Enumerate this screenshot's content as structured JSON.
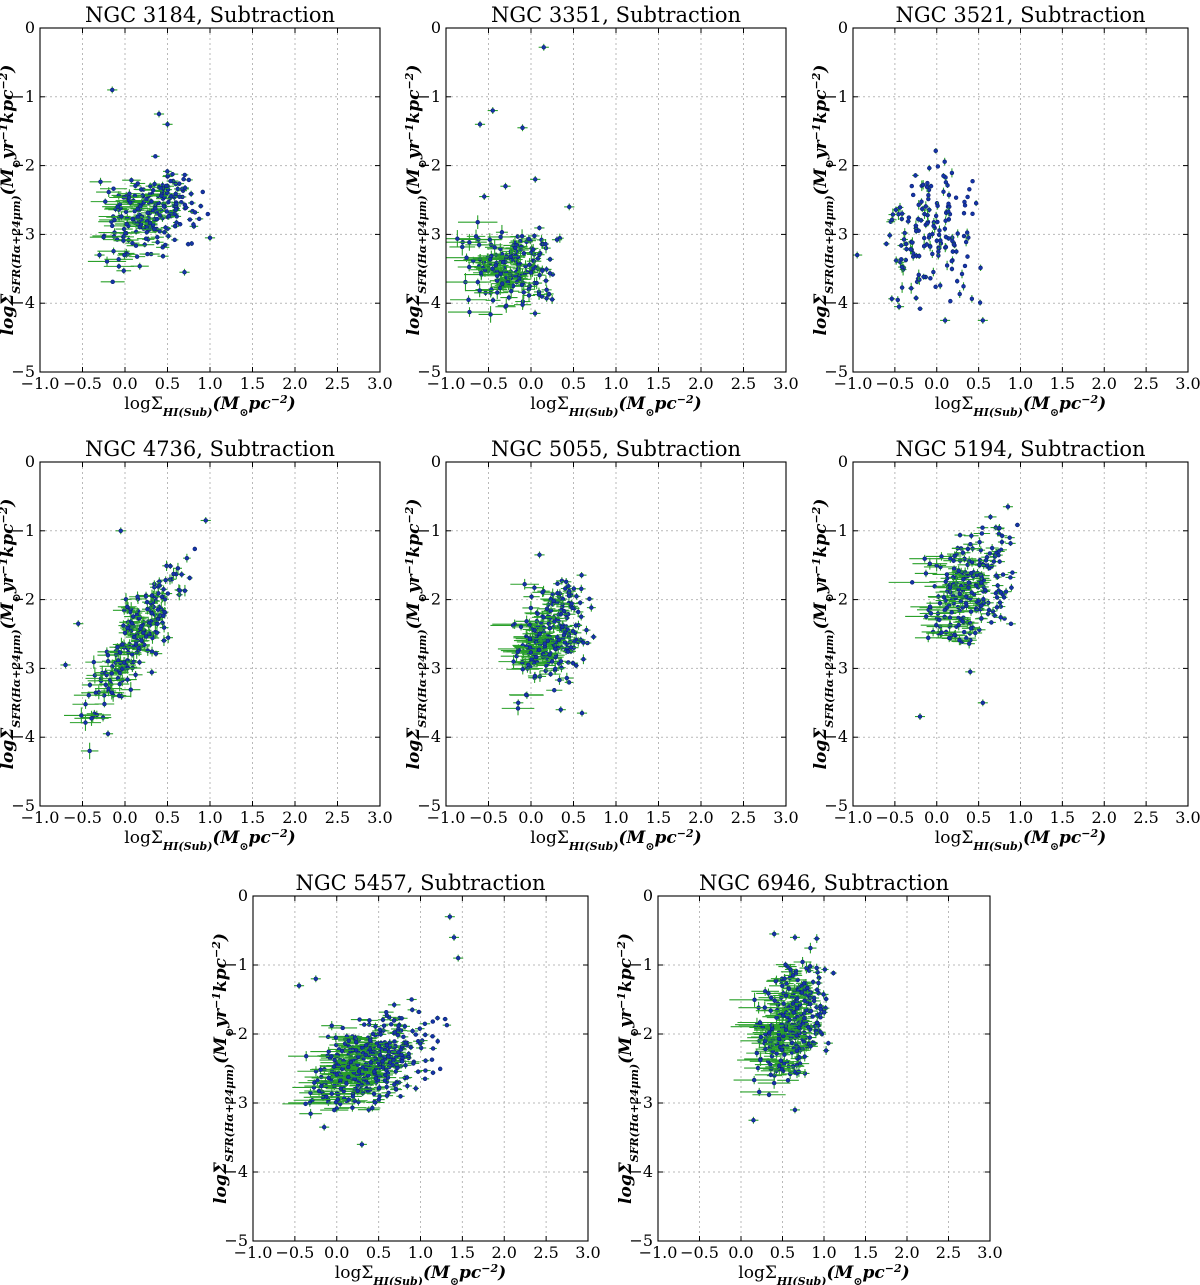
{
  "figure": {
    "xlabel": "logΣ_HI(Sub)(M⊙pc^-2)",
    "ylabel": "logΣ_SFR(Hα+24μm)(M⊙yr^-1kpc^-2)",
    "colors": {
      "points": "#1535a8",
      "errorbars": "#2aa02a",
      "grid": "#b9b9b9"
    }
  },
  "chart_data": [
    {
      "type": "scatter",
      "title": "NGC 3184, Subtraction",
      "xlabel": "logΣHI(Sub)(M⊙pc−2)",
      "ylabel": "logΣSFR(Hα+24μm)(M⊙yr−1kpc−2)",
      "xlim": [
        -1.0,
        3.0
      ],
      "ylim": [
        -5,
        0
      ],
      "xticks": [
        "−1.0",
        "−0.5",
        "0.0",
        "0.5",
        "1.0",
        "1.5",
        "2.0",
        "2.5",
        "3.0"
      ],
      "yticks": [
        "−5",
        "−4",
        "−3",
        "−2",
        "−1",
        "0"
      ],
      "grid": true,
      "cloud": {
        "n": 230,
        "x_range": [
          -0.45,
          1.05
        ],
        "y_range": [
          -3.7,
          -1.7
        ],
        "corr": 0.35,
        "xerr_max": 0.3,
        "yerr_max": 0.08
      },
      "highlights": [
        {
          "x": -0.15,
          "y": -0.9
        },
        {
          "x": 0.4,
          "y": -1.25
        },
        {
          "x": 0.5,
          "y": -1.4
        },
        {
          "x": 0.7,
          "y": -3.55
        },
        {
          "x": 1.0,
          "y": -3.05
        },
        {
          "x": -0.3,
          "y": -3.3
        }
      ]
    },
    {
      "type": "scatter",
      "title": "NGC 3351, Subtraction",
      "xlabel": "logΣHI(Sub)(M⊙pc−2)",
      "ylabel": "logΣSFR(Hα+24μm)(M⊙yr−1kpc−2)",
      "xlim": [
        -1.0,
        3.0
      ],
      "ylim": [
        -5,
        0
      ],
      "xticks": [
        "−1.0",
        "−0.5",
        "0.0",
        "0.5",
        "1.0",
        "1.5",
        "2.0",
        "2.5",
        "3.0"
      ],
      "yticks": [
        "−5",
        "−4",
        "−3",
        "−2",
        "−1",
        "0"
      ],
      "grid": true,
      "cloud": {
        "n": 190,
        "x_range": [
          -1.0,
          0.45
        ],
        "y_range": [
          -4.3,
          -2.7
        ],
        "corr": 0.0,
        "xerr_max": 0.4,
        "yerr_max": 0.15
      },
      "highlights": [
        {
          "x": 0.15,
          "y": -0.28
        },
        {
          "x": -0.45,
          "y": -1.2
        },
        {
          "x": -0.6,
          "y": -1.4
        },
        {
          "x": -0.1,
          "y": -1.45
        },
        {
          "x": -0.55,
          "y": -2.45
        },
        {
          "x": -0.3,
          "y": -2.3
        },
        {
          "x": 0.05,
          "y": -2.2
        },
        {
          "x": 0.45,
          "y": -2.6
        }
      ]
    },
    {
      "type": "scatter",
      "title": "NGC 3521, Subtraction",
      "xlabel": "logΣHI(Sub)(M⊙pc−2)",
      "ylabel": "logΣSFR(Hα+24μm)(M⊙yr−1kpc−2)",
      "xlim": [
        -1.0,
        3.0
      ],
      "ylim": [
        -5,
        0
      ],
      "xticks": [
        "−1.0",
        "−0.5",
        "0.0",
        "0.5",
        "1.0",
        "1.5",
        "2.0",
        "2.5",
        "3.0"
      ],
      "yticks": [
        "−5",
        "−4",
        "−3",
        "−2",
        "−1",
        "0"
      ],
      "grid": true,
      "cloud": {
        "n": 160,
        "x_range": [
          -0.85,
          0.8
        ],
        "y_range": [
          -4.3,
          -1.6
        ],
        "corr": 0.0,
        "xerr_max": 0.08,
        "yerr_max": 0.1
      },
      "highlights": [
        {
          "x": -0.95,
          "y": -3.3
        },
        {
          "x": -0.45,
          "y": -4.05
        },
        {
          "x": 0.1,
          "y": -4.25
        },
        {
          "x": 0.55,
          "y": -4.25
        }
      ]
    },
    {
      "type": "scatter",
      "title": "NGC 4736, Subtraction",
      "xlabel": "logΣHI(Sub)(M⊙pc−2)",
      "ylabel": "logΣSFR(Hα+24μm)(M⊙yr−1kpc−2)",
      "xlim": [
        -1.0,
        3.0
      ],
      "ylim": [
        -5,
        0
      ],
      "xticks": [
        "−1.0",
        "−0.5",
        "0.0",
        "0.5",
        "1.0",
        "1.5",
        "2.0",
        "2.5",
        "3.0"
      ],
      "yticks": [
        "−5",
        "−4",
        "−3",
        "−2",
        "−1",
        "0"
      ],
      "grid": true,
      "cloud": {
        "n": 210,
        "x_range": [
          -0.65,
          0.95
        ],
        "y_range": [
          -4.2,
          -0.85
        ],
        "corr": 0.85,
        "xerr_max": 0.3,
        "yerr_max": 0.15
      },
      "highlights": [
        {
          "x": -0.05,
          "y": -1.0
        },
        {
          "x": 0.95,
          "y": -0.85
        },
        {
          "x": -0.55,
          "y": -2.35
        },
        {
          "x": -0.7,
          "y": -2.95
        },
        {
          "x": -0.2,
          "y": -3.95
        }
      ]
    },
    {
      "type": "scatter",
      "title": "NGC 5055, Subtraction",
      "xlabel": "logΣHI(Sub)(M⊙pc−2)",
      "ylabel": "logΣSFR(Hα+24μm)(M⊙yr−1kpc−2)",
      "xlim": [
        -1.0,
        3.0
      ],
      "ylim": [
        -5,
        0
      ],
      "xticks": [
        "−1.0",
        "−0.5",
        "0.0",
        "0.5",
        "1.0",
        "1.5",
        "2.0",
        "2.5",
        "3.0"
      ],
      "yticks": [
        "−5",
        "−4",
        "−3",
        "−2",
        "−1",
        "0"
      ],
      "grid": true,
      "cloud": {
        "n": 240,
        "x_range": [
          -0.35,
          0.85
        ],
        "y_range": [
          -3.6,
          -1.4
        ],
        "corr": 0.3,
        "xerr_max": 0.35,
        "yerr_max": 0.12
      },
      "highlights": [
        {
          "x": 0.1,
          "y": -1.35
        },
        {
          "x": 0.6,
          "y": -3.65
        },
        {
          "x": 0.35,
          "y": -3.6
        },
        {
          "x": -0.15,
          "y": -3.5
        }
      ]
    },
    {
      "type": "scatter",
      "title": "NGC 5194, Subtraction",
      "xlabel": "logΣHI(Sub)(M⊙pc−2)",
      "ylabel": "logΣSFR(Hα+24μm)(M⊙yr−1kpc−2)",
      "xlim": [
        -1.0,
        3.0
      ],
      "ylim": [
        -5,
        0
      ],
      "xticks": [
        "−1.0",
        "−0.5",
        "0.0",
        "0.5",
        "1.0",
        "1.5",
        "2.0",
        "2.5",
        "3.0"
      ],
      "yticks": [
        "−5",
        "−4",
        "−3",
        "−2",
        "−1",
        "0"
      ],
      "grid": true,
      "cloud": {
        "n": 230,
        "x_range": [
          -0.35,
          1.15
        ],
        "y_range": [
          -3.1,
          -0.65
        ],
        "corr": 0.4,
        "xerr_max": 0.35,
        "yerr_max": 0.1
      },
      "highlights": [
        {
          "x": -0.2,
          "y": -3.7
        },
        {
          "x": 0.55,
          "y": -3.5
        },
        {
          "x": 0.85,
          "y": -0.65
        },
        {
          "x": 0.4,
          "y": -3.05
        }
      ]
    },
    {
      "type": "scatter",
      "title": "NGC 5457, Subtraction",
      "xlabel": "logΣHI(Sub)(M⊙pc−2)",
      "ylabel": "logΣSFR(Hα+24μm)(M⊙yr−1kpc−2)",
      "xlim": [
        -1.0,
        3.0
      ],
      "ylim": [
        -5,
        0
      ],
      "xticks": [
        "−1.0",
        "−0.5",
        "0.0",
        "0.5",
        "1.0",
        "1.5",
        "2.0",
        "2.5",
        "3.0"
      ],
      "yticks": [
        "−5",
        "−4",
        "−3",
        "−2",
        "−1",
        "0"
      ],
      "grid": true,
      "cloud": {
        "n": 420,
        "x_range": [
          -0.6,
          1.45
        ],
        "y_range": [
          -3.3,
          -1.5
        ],
        "corr": 0.45,
        "xerr_max": 0.35,
        "yerr_max": 0.08
      },
      "highlights": [
        {
          "x": 1.35,
          "y": -0.3
        },
        {
          "x": 1.4,
          "y": -0.6
        },
        {
          "x": 1.45,
          "y": -0.9
        },
        {
          "x": -0.45,
          "y": -1.3
        },
        {
          "x": -0.25,
          "y": -1.2
        },
        {
          "x": 0.3,
          "y": -3.6
        },
        {
          "x": -0.15,
          "y": -3.35
        }
      ]
    },
    {
      "type": "scatter",
      "title": "NGC 6946, Subtraction",
      "xlabel": "logΣHI(Sub)(M⊙pc−2)",
      "ylabel": "logΣSFR(Hα+24μm)(M⊙yr−1kpc−2)",
      "xlim": [
        -1.0,
        3.0
      ],
      "ylim": [
        -5,
        0
      ],
      "xticks": [
        "−1.0",
        "−0.5",
        "0.0",
        "0.5",
        "1.0",
        "1.5",
        "2.0",
        "2.5",
        "3.0"
      ],
      "yticks": [
        "−5",
        "−4",
        "−3",
        "−2",
        "−1",
        "0"
      ],
      "grid": true,
      "cloud": {
        "n": 300,
        "x_range": [
          0.0,
          1.2
        ],
        "y_range": [
          -3.1,
          -0.6
        ],
        "corr": 0.3,
        "xerr_max": 0.4,
        "yerr_max": 0.12
      },
      "highlights": [
        {
          "x": 0.4,
          "y": -0.55
        },
        {
          "x": 0.65,
          "y": -0.6
        },
        {
          "x": 0.15,
          "y": -3.25
        },
        {
          "x": 0.65,
          "y": -3.1
        }
      ]
    }
  ]
}
